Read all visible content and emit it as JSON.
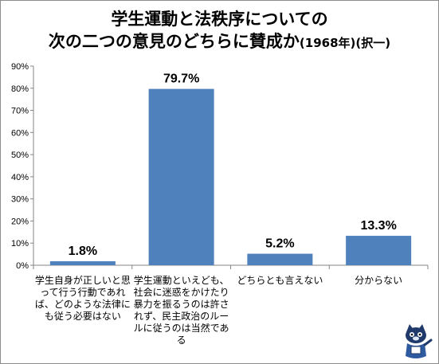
{
  "title_line1": "学生運動と法秩序についての",
  "title_line2_main": "次の二つの意見のどちらに賛成か",
  "title_line2_suffix": "(1968年)(択一)",
  "chart_data": {
    "type": "bar",
    "title": "学生運動と法秩序についての 次の二つの意見のどちらに賛成か(1968年)(択一)",
    "categories": [
      "学生自身が正しいと思って行う行動であれば、どのような法律にも従う必要はない",
      "学生運動といえども、社会に迷惑をかけたり暴力を振るうのは許されず、民主政治のルールに従うのは当然である",
      "どちらとも言えない",
      "分からない"
    ],
    "values": [
      1.8,
      79.7,
      5.2,
      13.3
    ],
    "value_labels": [
      "1.8%",
      "79.7%",
      "5.2%",
      "13.3%"
    ],
    "ylim": [
      0,
      90
    ],
    "yticks": [
      0,
      10,
      20,
      30,
      40,
      50,
      60,
      70,
      80,
      90
    ],
    "ytick_labels": [
      "0%",
      "10%",
      "20%",
      "30%",
      "40%",
      "50%",
      "60%",
      "70%",
      "80%",
      "90%"
    ],
    "grid": false,
    "legend": "none",
    "bar_color": "#4f81bd",
    "xlabel": "",
    "ylabel": ""
  }
}
